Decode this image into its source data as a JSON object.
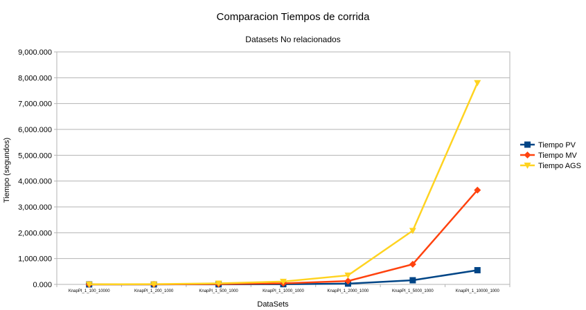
{
  "chart_data": {
    "type": "line",
    "title": "Comparacion Tiempos de corrida",
    "subtitle": "Datasets No relacionados",
    "xlabel": "DataSets",
    "ylabel": "Tiempo (segundos)",
    "categories": [
      "KnapPI_1_100_10000",
      "KnapPI_1_200_1000",
      "KnapPI_1_500_1000",
      "KnapPI_1_1000_1000",
      "KnapPI_1_2000_1000",
      "KnapPI_1_5000_1000",
      "KnapPI_1_10000_1000"
    ],
    "ylim": [
      0,
      9000000
    ],
    "yticks": [
      0,
      1000000,
      2000000,
      3000000,
      4000000,
      5000000,
      6000000,
      7000000,
      8000000,
      9000000
    ],
    "ytick_labels": [
      "0.000",
      "1,000.000",
      "2,000.000",
      "3,000.000",
      "4,000.000",
      "5,000.000",
      "6,000.000",
      "7,000.000",
      "8,000.000",
      "9,000.000"
    ],
    "grid": true,
    "legend_position": "right",
    "series": [
      {
        "name": "Tiempo PV",
        "color": "#004586",
        "marker": "square",
        "values": [
          0,
          1000,
          3000,
          8000,
          30000,
          160000,
          550000
        ]
      },
      {
        "name": "Tiempo MV",
        "color": "#ff420e",
        "marker": "diamond",
        "values": [
          500,
          4000,
          12000,
          40000,
          130000,
          780000,
          3650000
        ]
      },
      {
        "name": "Tiempo AGS",
        "color": "#ffd320",
        "marker": "triangle-down",
        "values": [
          2000,
          10000,
          40000,
          110000,
          350000,
          2080000,
          7800000
        ]
      }
    ]
  }
}
